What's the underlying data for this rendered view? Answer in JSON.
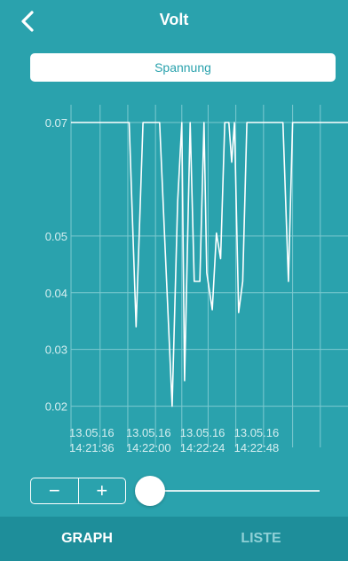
{
  "nav": {
    "title": "Volt",
    "back_icon": "chevron-left-icon"
  },
  "segment": {
    "label": "Spannung"
  },
  "chart_data": {
    "type": "line",
    "title": "",
    "xlabel": "",
    "ylabel": "",
    "ylim": [
      0.019,
      0.0725
    ],
    "yticks": [
      0.07,
      0.05,
      0.04,
      0.03,
      0.02
    ],
    "ytick_labels": [
      "0.07",
      "0.05",
      "0.04",
      "0.03",
      "0.02"
    ],
    "xtick_labels": [
      [
        "13.05.16",
        "14:21:36"
      ],
      [
        "13.05.16",
        "14:22:00"
      ],
      [
        "13.05.16",
        "14:22:24"
      ],
      [
        "13.05.16",
        "14:22:48"
      ]
    ],
    "x_index_range": [
      0,
      100
    ],
    "xtick_index": [
      0,
      20.5,
      40,
      59.5
    ],
    "grid": true,
    "line_color": "#ffffff",
    "points": [
      [
        0,
        0.07
      ],
      [
        21,
        0.07
      ],
      [
        23.5,
        0.034
      ],
      [
        26,
        0.07
      ],
      [
        32,
        0.07
      ],
      [
        34,
        0.0475
      ],
      [
        36.5,
        0.02
      ],
      [
        38.5,
        0.056
      ],
      [
        40,
        0.07
      ],
      [
        41,
        0.0245
      ],
      [
        43,
        0.07
      ],
      [
        44.5,
        0.042
      ],
      [
        46.5,
        0.042
      ],
      [
        48,
        0.07
      ],
      [
        49,
        0.0435
      ],
      [
        51,
        0.037
      ],
      [
        52.5,
        0.0505
      ],
      [
        54,
        0.046
      ],
      [
        55.5,
        0.07
      ],
      [
        57,
        0.07
      ],
      [
        58,
        0.063
      ],
      [
        59,
        0.07
      ],
      [
        60.5,
        0.0365
      ],
      [
        62,
        0.042
      ],
      [
        63.5,
        0.07
      ],
      [
        76.5,
        0.07
      ],
      [
        78.5,
        0.042
      ],
      [
        80,
        0.07
      ],
      [
        100,
        0.07
      ]
    ]
  },
  "controls": {
    "minus_label": "−",
    "plus_label": "+",
    "slider_value": 0
  },
  "tabs": [
    {
      "label": "GRAPH"
    },
    {
      "label": "LISTE"
    }
  ],
  "colors": {
    "background": "#2aa2ad",
    "tabbar": "#1e8e9a",
    "accent": "#ffffff"
  }
}
